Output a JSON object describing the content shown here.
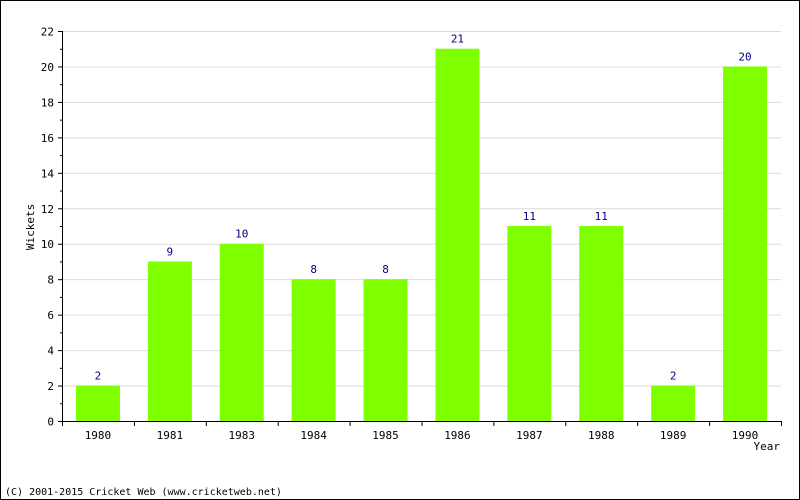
{
  "chart_data": {
    "type": "bar",
    "categories": [
      "1980",
      "1981",
      "1983",
      "1984",
      "1985",
      "1986",
      "1987",
      "1988",
      "1989",
      "1990"
    ],
    "values": [
      2,
      9,
      10,
      8,
      8,
      21,
      11,
      11,
      2,
      20
    ],
    "xlabel": "Year",
    "ylabel": "Wickets",
    "ylim": [
      0,
      22
    ],
    "yticks": [
      0,
      2,
      4,
      6,
      8,
      10,
      12,
      14,
      16,
      18,
      20,
      22
    ],
    "grid": true,
    "data_labels": true,
    "bar_color": "#7fff00",
    "label_color": "#000080",
    "grid_color": "#dcdcdc"
  },
  "footer": "(C) 2001-2015 Cricket Web (www.cricketweb.net)"
}
